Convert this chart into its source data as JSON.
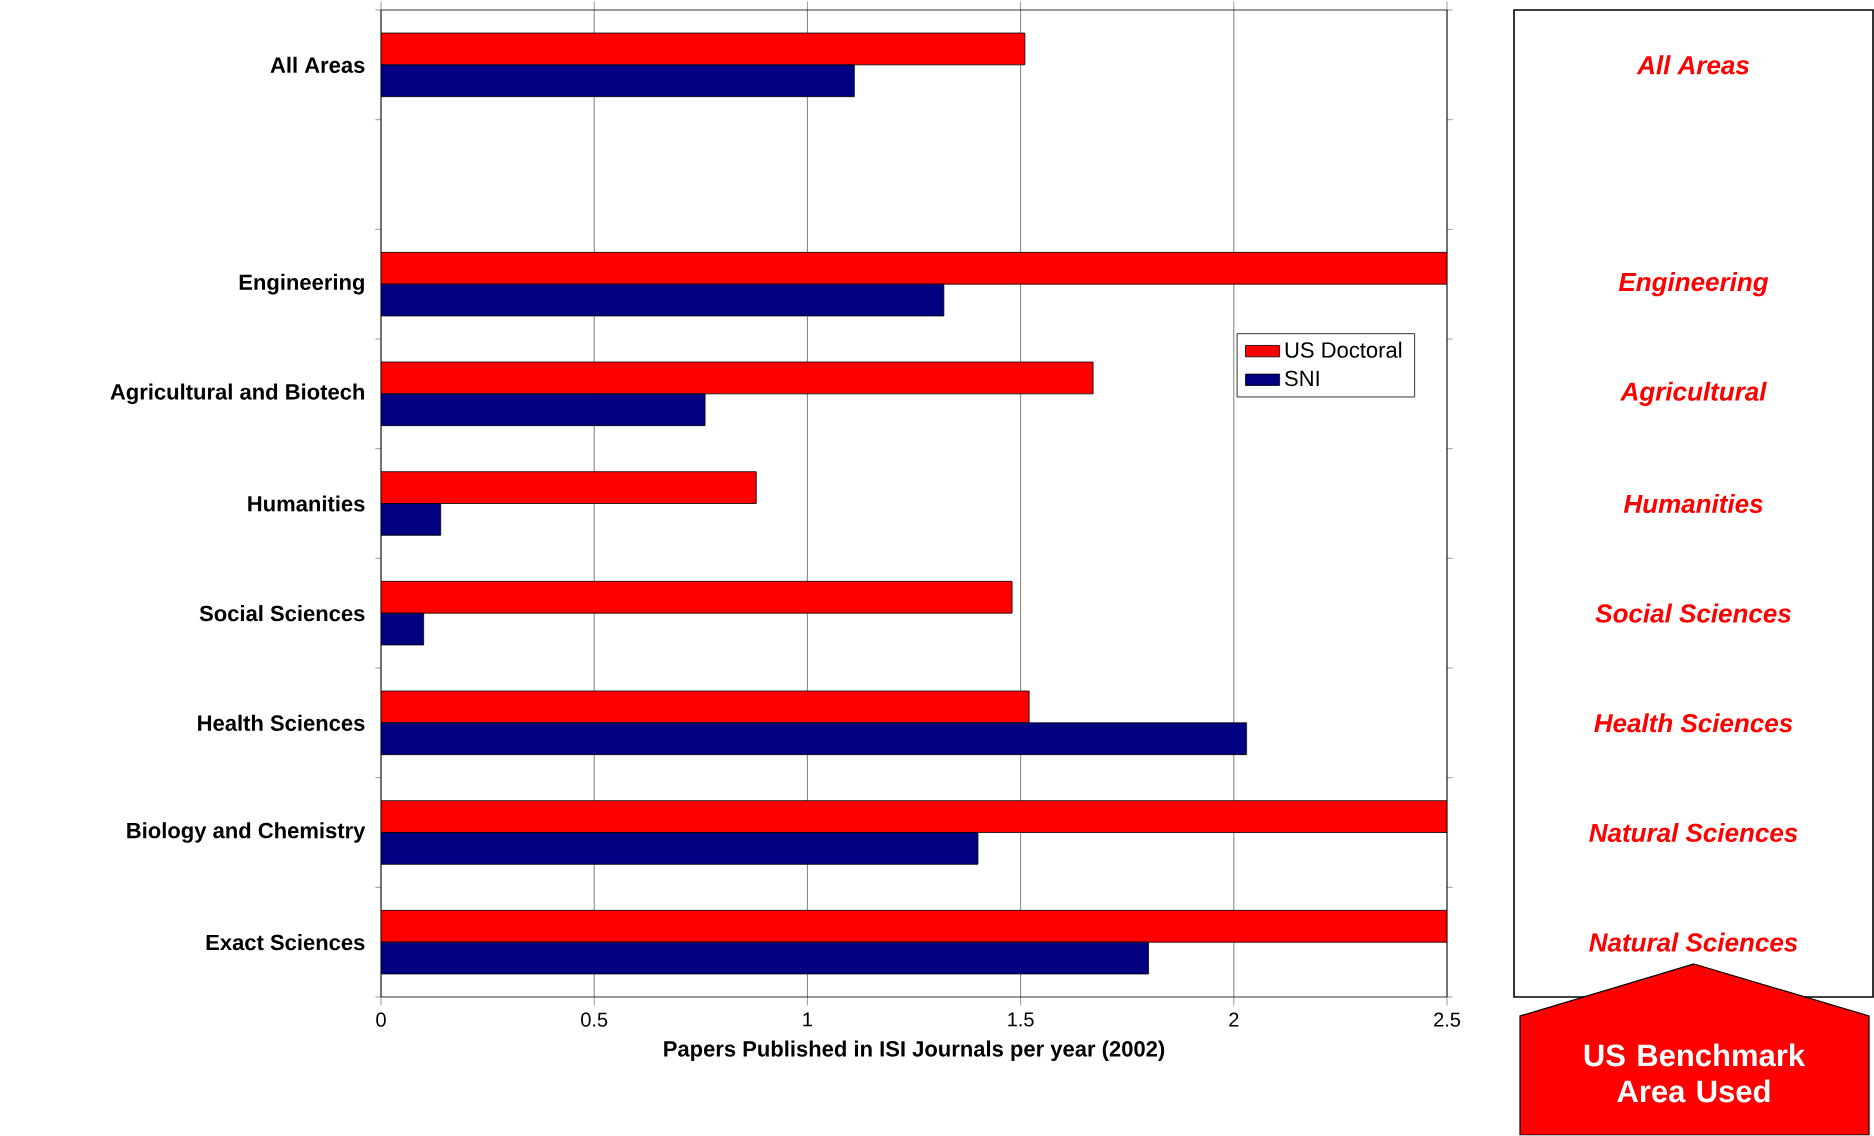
{
  "chart_data": [
    {
      "type": "bar",
      "orientation": "horizontal",
      "xlabel": "Papers Published in ISI Journals per year (2002)",
      "categories": [
        "All Areas",
        null,
        "Engineering",
        "Agricultural and Biotech",
        "Humanities",
        "Social Sciences",
        "Health Sciences",
        "Biology and Chemistry",
        "Exact Sciences"
      ],
      "series": [
        {
          "name": "US Doctoral",
          "color": "#ff0000",
          "values": [
            1.51,
            null,
            2.5,
            1.67,
            0.88,
            1.48,
            1.52,
            2.5,
            2.5
          ]
        },
        {
          "name": "SNI",
          "color": "#000080",
          "values": [
            1.11,
            null,
            1.32,
            0.76,
            0.14,
            0.1,
            2.03,
            1.4,
            1.8
          ]
        }
      ],
      "xlim": [
        0,
        2.5
      ],
      "xticks": [
        0,
        0.5,
        1,
        1.5,
        2,
        2.5
      ],
      "grid": "x",
      "legend": "right"
    },
    {
      "type": "other",
      "color": "#ff0000",
      "categories": [
        "All Areas",
        null,
        "Engineering",
        "Agricultural",
        "Humanities",
        "Social Sciences",
        "Health Sciences",
        "Natural Sciences",
        "Natural Sciences"
      ],
      "annotations": [
        "US Benchmark Area Used"
      ]
    }
  ]
}
